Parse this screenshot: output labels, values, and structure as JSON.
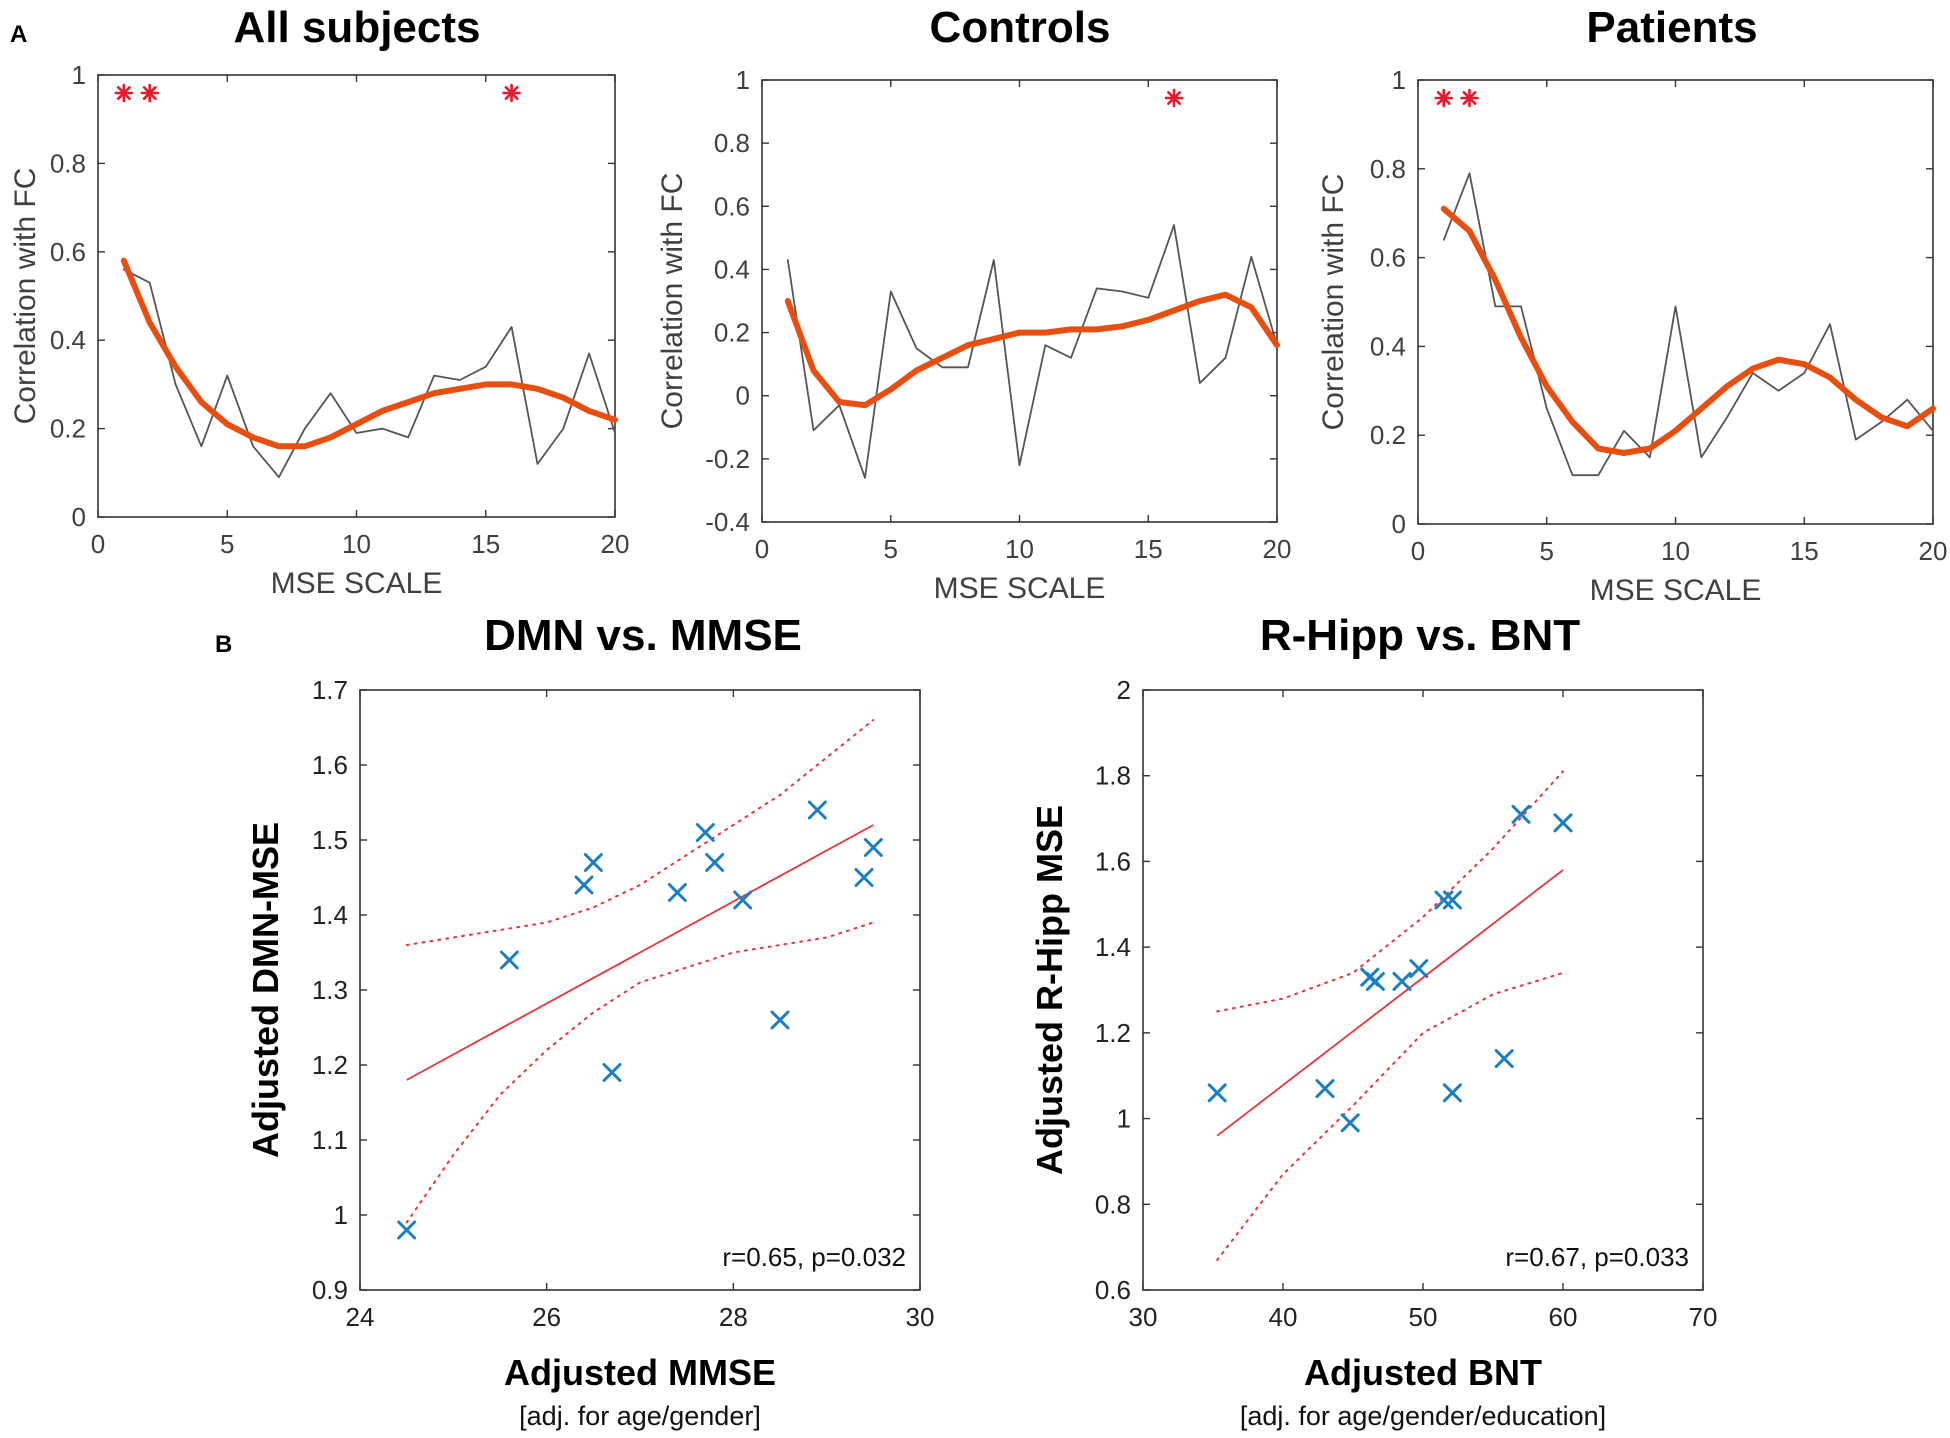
{
  "panel_labels": [
    "A",
    "B"
  ],
  "chart_data": [
    {
      "id": "all",
      "type": "line",
      "title": "All subjects",
      "xlabel": "MSE SCALE",
      "ylabel": "Correlation with FC",
      "xlim": [
        0,
        20
      ],
      "ylim": [
        0,
        1
      ],
      "xticks": [
        0,
        5,
        10,
        15,
        20
      ],
      "yticks": [
        0,
        0.2,
        0.4,
        0.6,
        0.8,
        1
      ],
      "series": [
        {
          "name": "raw",
          "color": "#555555",
          "x": [
            1,
            2,
            3,
            4,
            5,
            6,
            7,
            8,
            9,
            10,
            11,
            12,
            13,
            14,
            15,
            16,
            17,
            18,
            19,
            20
          ],
          "values": [
            0.56,
            0.53,
            0.3,
            0.16,
            0.32,
            0.16,
            0.09,
            0.2,
            0.28,
            0.19,
            0.2,
            0.18,
            0.32,
            0.31,
            0.34,
            0.43,
            0.12,
            0.2,
            0.37,
            0.19
          ]
        },
        {
          "name": "fit",
          "color": "#E84E10",
          "x": [
            1,
            2,
            3,
            4,
            5,
            6,
            7,
            8,
            9,
            10,
            11,
            12,
            13,
            14,
            15,
            16,
            17,
            18,
            19,
            20
          ],
          "values": [
            0.58,
            0.44,
            0.34,
            0.26,
            0.21,
            0.18,
            0.16,
            0.16,
            0.18,
            0.21,
            0.24,
            0.26,
            0.28,
            0.29,
            0.3,
            0.3,
            0.29,
            0.27,
            0.24,
            0.22
          ]
        }
      ],
      "significance_markers": [
        1,
        2,
        16
      ],
      "marker_color": "#E8192C"
    },
    {
      "id": "controls",
      "type": "line",
      "title": "Controls",
      "xlabel": "MSE SCALE",
      "ylabel": "Correlation with FC",
      "xlim": [
        0,
        20
      ],
      "ylim": [
        -0.4,
        1
      ],
      "xticks": [
        0,
        5,
        10,
        15,
        20
      ],
      "yticks": [
        -0.4,
        -0.2,
        0,
        0.2,
        0.4,
        0.6,
        0.8,
        1
      ],
      "series": [
        {
          "name": "raw",
          "color": "#555555",
          "x": [
            1,
            2,
            3,
            4,
            5,
            6,
            7,
            8,
            9,
            10,
            11,
            12,
            13,
            14,
            15,
            16,
            17,
            18,
            19,
            20
          ],
          "values": [
            0.43,
            -0.11,
            -0.03,
            -0.26,
            0.33,
            0.15,
            0.09,
            0.09,
            0.43,
            -0.22,
            0.16,
            0.12,
            0.34,
            0.33,
            0.31,
            0.54,
            0.04,
            0.12,
            0.44,
            0.16
          ]
        },
        {
          "name": "fit",
          "color": "#E84E10",
          "x": [
            1,
            2,
            3,
            4,
            5,
            6,
            7,
            8,
            9,
            10,
            11,
            12,
            13,
            14,
            15,
            16,
            17,
            18,
            19,
            20
          ],
          "values": [
            0.3,
            0.08,
            -0.02,
            -0.03,
            0.02,
            0.08,
            0.12,
            0.16,
            0.18,
            0.2,
            0.2,
            0.21,
            0.21,
            0.22,
            0.24,
            0.27,
            0.3,
            0.32,
            0.28,
            0.16
          ]
        }
      ],
      "significance_markers": [
        16
      ],
      "marker_color": "#E8192C"
    },
    {
      "id": "patients",
      "type": "line",
      "title": "Patients",
      "xlabel": "MSE SCALE",
      "ylabel": "Correlation with FC",
      "xlim": [
        0,
        20
      ],
      "ylim": [
        0,
        1
      ],
      "xticks": [
        0,
        5,
        10,
        15,
        20
      ],
      "yticks": [
        0,
        0.2,
        0.4,
        0.6,
        0.8,
        1
      ],
      "series": [
        {
          "name": "raw",
          "color": "#555555",
          "x": [
            1,
            2,
            3,
            4,
            5,
            6,
            7,
            8,
            9,
            10,
            11,
            12,
            13,
            14,
            15,
            16,
            17,
            18,
            19,
            20
          ],
          "values": [
            0.64,
            0.79,
            0.49,
            0.49,
            0.26,
            0.11,
            0.11,
            0.21,
            0.15,
            0.49,
            0.15,
            0.24,
            0.34,
            0.3,
            0.34,
            0.45,
            0.19,
            0.23,
            0.28,
            0.21
          ]
        },
        {
          "name": "fit",
          "color": "#E84E10",
          "x": [
            1,
            2,
            3,
            4,
            5,
            6,
            7,
            8,
            9,
            10,
            11,
            12,
            13,
            14,
            15,
            16,
            17,
            18,
            19,
            20
          ],
          "values": [
            0.71,
            0.66,
            0.55,
            0.42,
            0.31,
            0.23,
            0.17,
            0.16,
            0.17,
            0.21,
            0.26,
            0.31,
            0.35,
            0.37,
            0.36,
            0.33,
            0.28,
            0.24,
            0.22,
            0.26
          ]
        }
      ],
      "significance_markers": [
        1,
        2
      ],
      "marker_color": "#E8192C"
    },
    {
      "id": "dmn",
      "type": "scatter",
      "title": "DMN vs. MMSE",
      "xlabel": "Adjusted MMSE",
      "xlabel_note": "[adj. for age/gender]",
      "ylabel": "Adjusted DMN-MSE",
      "xlim": [
        24,
        30
      ],
      "ylim": [
        0.9,
        1.7
      ],
      "xticks": [
        24,
        26,
        28,
        30
      ],
      "yticks": [
        0.9,
        1,
        1.1,
        1.2,
        1.3,
        1.4,
        1.5,
        1.6,
        1.7
      ],
      "points": {
        "x": [
          24.5,
          25.6,
          26.4,
          26.5,
          26.7,
          27.4,
          27.7,
          27.8,
          28.1,
          28.5,
          28.9,
          29.4,
          29.5
        ],
        "y": [
          0.98,
          1.34,
          1.44,
          1.47,
          1.19,
          1.43,
          1.51,
          1.47,
          1.42,
          1.26,
          1.54,
          1.45,
          1.49
        ]
      },
      "fit_line": {
        "x": [
          24.5,
          29.5
        ],
        "y": [
          1.18,
          1.52
        ]
      },
      "ci_upper": {
        "x": [
          24.5,
          25,
          25.5,
          26,
          26.5,
          27,
          27.5,
          28,
          28.5,
          29,
          29.5
        ],
        "y": [
          1.36,
          1.37,
          1.38,
          1.39,
          1.41,
          1.44,
          1.48,
          1.52,
          1.56,
          1.61,
          1.66
        ]
      },
      "ci_lower": {
        "x": [
          24.5,
          25,
          25.5,
          26,
          26.5,
          27,
          27.5,
          28,
          28.5,
          29,
          29.5
        ],
        "y": [
          0.99,
          1.08,
          1.16,
          1.22,
          1.27,
          1.31,
          1.33,
          1.35,
          1.36,
          1.37,
          1.39
        ]
      },
      "annotation": "r=0.65, p=0.032",
      "point_color": "#1A7EC2",
      "line_color": "#E8353A"
    },
    {
      "id": "hipp",
      "type": "scatter",
      "title": "R-Hipp vs. BNT",
      "xlabel": "Adjusted BNT",
      "xlabel_note": "[adj. for age/gender/education]",
      "ylabel": "Adjusted R-Hipp MSE",
      "xlim": [
        30,
        70
      ],
      "ylim": [
        0.6,
        2
      ],
      "xticks": [
        30,
        40,
        50,
        60,
        70
      ],
      "yticks": [
        0.6,
        0.8,
        1,
        1.2,
        1.4,
        1.6,
        1.8,
        2
      ],
      "points": {
        "x": [
          35.3,
          43,
          44.8,
          46.2,
          46.6,
          48.5,
          49.7,
          51.5,
          52.1,
          52.1,
          55.8,
          57,
          60
        ],
        "y": [
          1.06,
          1.07,
          0.99,
          1.33,
          1.32,
          1.32,
          1.35,
          1.51,
          1.51,
          1.06,
          1.14,
          1.71,
          1.69
        ]
      },
      "fit_line": {
        "x": [
          35.3,
          60
        ],
        "y": [
          0.96,
          1.58
        ]
      },
      "ci_upper": {
        "x": [
          35.3,
          40,
          45,
          50,
          55,
          60
        ],
        "y": [
          1.25,
          1.28,
          1.34,
          1.47,
          1.63,
          1.81
        ]
      },
      "ci_lower": {
        "x": [
          35.3,
          40,
          45,
          50,
          55,
          60
        ],
        "y": [
          0.67,
          0.87,
          1.03,
          1.2,
          1.29,
          1.34
        ]
      },
      "annotation": "r=0.67, p=0.033",
      "point_color": "#1A7EC2",
      "line_color": "#E8353A"
    }
  ]
}
